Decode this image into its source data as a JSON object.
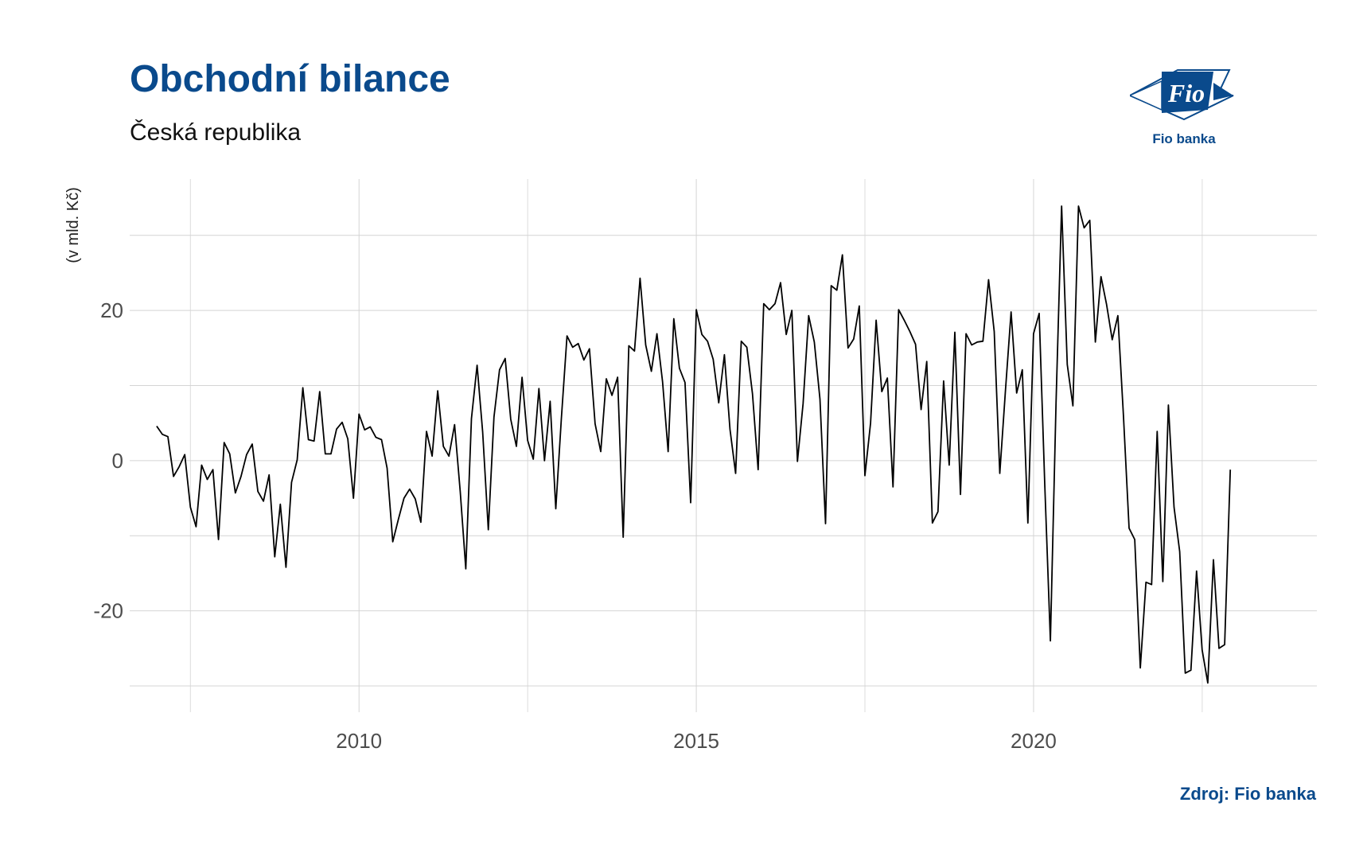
{
  "header": {
    "title": "Obchodní bilance",
    "subtitle": "Česká republika"
  },
  "brand": {
    "logo_text": "Fio",
    "logo_caption": "Fio banka",
    "logo_color": "#0a4a8c"
  },
  "footer": {
    "source": "Zdroj: Fio banka"
  },
  "chart_data": {
    "type": "line",
    "title": "Obchodní bilance",
    "subtitle": "Česká republika",
    "xlabel": "",
    "ylabel": "(v mld. Kč)",
    "x_ticks": [
      2010,
      2015,
      2020
    ],
    "y_ticks": [
      -20,
      0,
      20
    ],
    "xlim": [
      2006.6,
      2024.2
    ],
    "ylim": [
      -33.5,
      37.5
    ],
    "grid": true,
    "legend": "none",
    "line_color": "#000000",
    "series": [
      {
        "start_year": 2007.0,
        "step": 0.08333,
        "values": [
          4.6,
          3.5,
          3.2,
          -2.1,
          -0.8,
          0.8,
          -6.2,
          -8.8,
          -0.6,
          -2.5,
          -1.2,
          -10.5,
          2.4,
          0.9,
          -4.3,
          -2.1,
          0.8,
          2.2,
          -4.1,
          -5.4,
          -1.9,
          -12.8,
          -5.8,
          -14.2,
          -2.9,
          0.1,
          9.7,
          2.8,
          2.6,
          9.2,
          0.9,
          0.9,
          4.2,
          5.1,
          2.9,
          -5.0,
          6.2,
          4.1,
          4.5,
          3.1,
          2.8,
          -1.0,
          -10.8,
          -7.8,
          -5.0,
          -3.8,
          -5.1,
          -8.2,
          3.9,
          0.6,
          9.3,
          1.9,
          0.6,
          4.8,
          -4.1,
          -14.4,
          5.6,
          12.7,
          3.8,
          -9.2,
          5.8,
          12.1,
          13.6,
          5.5,
          1.9,
          11.1,
          2.7,
          0.2,
          9.6,
          0.0,
          7.9,
          -6.4,
          5.6,
          16.6,
          15.1,
          15.6,
          13.4,
          14.9,
          4.9,
          1.2,
          10.9,
          8.7,
          11.1,
          -10.2,
          15.3,
          14.6,
          24.3,
          15.4,
          11.9,
          16.9,
          10.5,
          1.2,
          18.9,
          12.3,
          10.4,
          -5.6,
          20.1,
          16.8,
          15.9,
          13.5,
          7.7,
          14.1,
          4.2,
          -1.7,
          15.9,
          15.1,
          8.9,
          -1.2,
          20.9,
          20.1,
          20.9,
          23.7,
          16.8,
          20.0,
          -0.1,
          7.6,
          19.3,
          15.8,
          8.2,
          -8.4,
          23.3,
          22.7,
          27.4,
          15.0,
          16.2,
          20.6,
          -2.0,
          5.0,
          18.7,
          9.2,
          11.0,
          -3.5,
          20.1,
          18.7,
          17.2,
          15.5,
          6.8,
          13.2,
          -8.3,
          -6.8,
          10.6,
          -0.6,
          17.1,
          -4.5,
          16.9,
          15.4,
          15.8,
          15.9,
          24.1,
          17.2,
          -1.7,
          9.3,
          19.8,
          9.0,
          12.1,
          -8.3,
          16.9,
          19.6,
          -3.1,
          -24.0,
          7.7,
          33.9,
          12.8,
          7.3,
          33.9,
          31.0,
          32.0,
          15.8,
          24.5,
          20.8,
          16.1,
          19.3,
          6.0,
          -9.0,
          -10.5,
          -27.6,
          -16.2,
          -16.5,
          3.9,
          -16.1,
          7.4,
          -6.2,
          -12.1,
          -28.3,
          -27.9,
          -14.7,
          -25.2,
          -29.6,
          -13.2,
          -25.0,
          -24.5,
          -1.2
        ]
      }
    ]
  }
}
